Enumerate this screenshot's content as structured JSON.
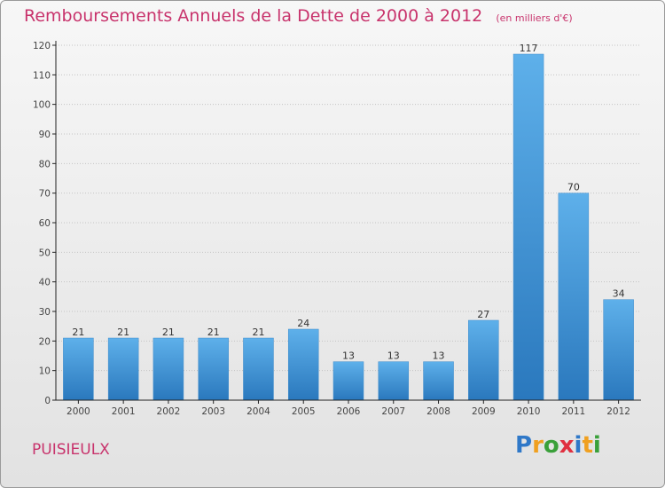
{
  "title": "Remboursements Annuels de la Dette de 2000 à 2012",
  "units": "(en milliers d'€)",
  "commune": "PUISIEULX",
  "logo": {
    "text": "Proxiti",
    "letters": [
      "P",
      "r",
      "o",
      "x",
      "i",
      "t",
      "i"
    ],
    "colors": [
      "#2f78c8",
      "#f0a020",
      "#3aa03a",
      "#e03040",
      "#2f78c8",
      "#f0a020",
      "#3aa03a"
    ]
  },
  "colors": {
    "title": "#c8336c",
    "bar_light": "#5eb0ea",
    "bar_dark": "#2a78bd",
    "axis": "#222222",
    "grid": "#c4c4c4"
  },
  "chart_data": {
    "type": "bar",
    "title": "Remboursements Annuels de la Dette de 2000 à 2012",
    "xlabel": "",
    "ylabel": "",
    "categories": [
      "2000",
      "2001",
      "2002",
      "2003",
      "2004",
      "2005",
      "2006",
      "2007",
      "2008",
      "2009",
      "2010",
      "2011",
      "2012"
    ],
    "values": [
      21,
      21,
      21,
      21,
      21,
      24,
      13,
      13,
      13,
      27,
      117,
      70,
      34
    ],
    "ylim": [
      0,
      120
    ],
    "yticks": [
      0,
      10,
      20,
      30,
      40,
      50,
      60,
      70,
      80,
      90,
      100,
      110,
      120
    ],
    "grid": true,
    "legend": "none"
  }
}
